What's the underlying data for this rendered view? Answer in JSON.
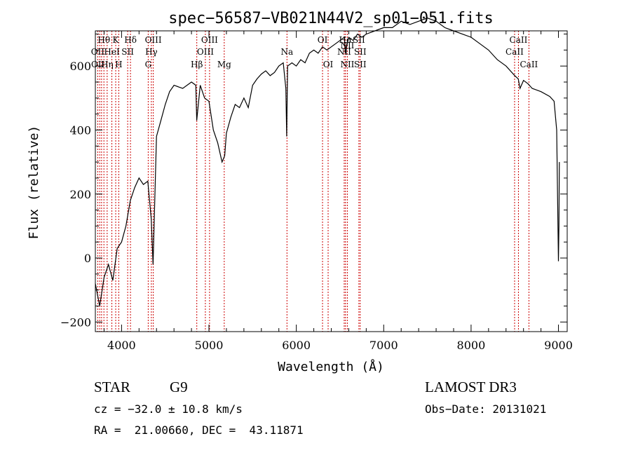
{
  "chart_data": {
    "type": "line",
    "title": "spec−56587−VB021N44V2_sp01−051.fits",
    "xlabel": "Wavelength (Å)",
    "ylabel": "Flux (relative)",
    "xlim": [
      3700,
      9100
    ],
    "ylim": [
      -230,
      710
    ],
    "x_ticks": [
      4000,
      5000,
      6000,
      7000,
      8000,
      9000
    ],
    "x_tick_labels": [
      "4000",
      "5000",
      "6000",
      "7000",
      "8000",
      "9000"
    ],
    "y_ticks": [
      -200,
      0,
      200,
      400,
      600
    ],
    "y_tick_labels": [
      "−200",
      "0",
      "200",
      "400",
      "600"
    ],
    "grid": false,
    "series": [
      {
        "x": [
          3700,
          3750,
          3800,
          3850,
          3900,
          3950,
          4000,
          4050,
          4100,
          4150,
          4200,
          4250,
          4300,
          4340,
          4360,
          4400,
          4450,
          4500,
          4550,
          4600,
          4700,
          4800,
          4850,
          4860,
          4900,
          4950,
          5000,
          5050,
          5100,
          5150,
          5180,
          5200,
          5250,
          5300,
          5350,
          5400,
          5450,
          5500,
          5550,
          5600,
          5650,
          5700,
          5750,
          5800,
          5850,
          5880,
          5890,
          5900,
          5950,
          6000,
          6050,
          6100,
          6150,
          6200,
          6250,
          6300,
          6350,
          6400,
          6450,
          6500,
          6550,
          6560,
          6600,
          6650,
          6700,
          6750,
          6800,
          6900,
          7000,
          7100,
          7200,
          7300,
          7400,
          7500,
          7600,
          7700,
          7800,
          7900,
          8000,
          8100,
          8200,
          8300,
          8400,
          8500,
          8540,
          8560,
          8600,
          8650,
          8700,
          8800,
          8900,
          8950,
          8980,
          9000,
          9005,
          9010
        ],
        "y": [
          -80,
          -150,
          -60,
          -20,
          -70,
          30,
          50,
          100,
          180,
          220,
          250,
          230,
          240,
          120,
          -20,
          380,
          430,
          480,
          520,
          540,
          530,
          550,
          540,
          430,
          540,
          500,
          490,
          400,
          360,
          300,
          320,
          390,
          440,
          480,
          470,
          500,
          470,
          540,
          560,
          575,
          585,
          570,
          580,
          600,
          610,
          530,
          380,
          600,
          610,
          600,
          620,
          610,
          640,
          650,
          640,
          660,
          650,
          660,
          670,
          680,
          690,
          640,
          690,
          680,
          700,
          690,
          700,
          710,
          720,
          720,
          740,
          730,
          740,
          750,
          740,
          720,
          710,
          700,
          690,
          670,
          650,
          620,
          600,
          570,
          560,
          530,
          555,
          545,
          530,
          520,
          505,
          490,
          400,
          -10,
          100,
          300
        ],
        "color": "#000000"
      }
    ],
    "lines_color": "#cc0000",
    "annotations": [
      {
        "text": "Hθ",
        "x": 3798,
        "row": 1
      },
      {
        "text": "OII",
        "x": 3727,
        "row": 2
      },
      {
        "text": "OII",
        "x": 3729,
        "row": 3
      },
      {
        "text": "Hη",
        "x": 3835,
        "row": 3
      },
      {
        "text": "K",
        "x": 3933,
        "row": 1
      },
      {
        "text": "HeI",
        "x": 3889,
        "row": 2
      },
      {
        "text": "H",
        "x": 3968,
        "row": 3
      },
      {
        "text": "Hδ",
        "x": 4102,
        "row": 1
      },
      {
        "text": "SII",
        "x": 4070,
        "row": 2
      },
      {
        "text": "OIII",
        "x": 4363,
        "row": 1
      },
      {
        "text": "Hγ",
        "x": 4341,
        "row": 2
      },
      {
        "text": "G",
        "x": 4305,
        "row": 3
      },
      {
        "text": "OIII",
        "x": 5007,
        "row": 1
      },
      {
        "text": "OIII",
        "x": 4959,
        "row": 2
      },
      {
        "text": "Hβ",
        "x": 4861,
        "row": 3
      },
      {
        "text": "Mg",
        "x": 5175,
        "row": 3
      },
      {
        "text": "Na",
        "x": 5893,
        "row": 2
      },
      {
        "text": "OI",
        "x": 6300,
        "row": 1
      },
      {
        "text": "OI",
        "x": 6364,
        "row": 3
      },
      {
        "text": "Hα",
        "x": 6563,
        "row": 1
      },
      {
        "text": "SII",
        "x": 6716,
        "row": 1
      },
      {
        "text": "NII",
        "x": 6584,
        "row": 1.5
      },
      {
        "text": "NII",
        "x": 6548,
        "row": 2
      },
      {
        "text": "SII",
        "x": 6731,
        "row": 2
      },
      {
        "text": "NII",
        "x": 6584,
        "row": 3
      },
      {
        "text": "SII",
        "x": 6731,
        "row": 3
      },
      {
        "text": "CaII",
        "x": 8542,
        "row": 1
      },
      {
        "text": "CaII",
        "x": 8498,
        "row": 2
      },
      {
        "text": "CaII",
        "x": 8662,
        "row": 3
      }
    ],
    "line_positions": [
      3727,
      3750,
      3771,
      3798,
      3835,
      3889,
      3933,
      3968,
      4070,
      4102,
      4305,
      4341,
      4363,
      4861,
      4959,
      5007,
      5175,
      5893,
      6300,
      6364,
      6548,
      6563,
      6584,
      6716,
      6731,
      8498,
      8542,
      8662
    ]
  },
  "info": {
    "object_type": "STAR",
    "subclass": "G9",
    "survey": "LAMOST DR3",
    "redshift": "cz = −32.0 ± 10.8 km/s",
    "obs_date": "Obs−Date: 20131021",
    "coords": "RA =  21.00660, DEC =  43.11871"
  }
}
